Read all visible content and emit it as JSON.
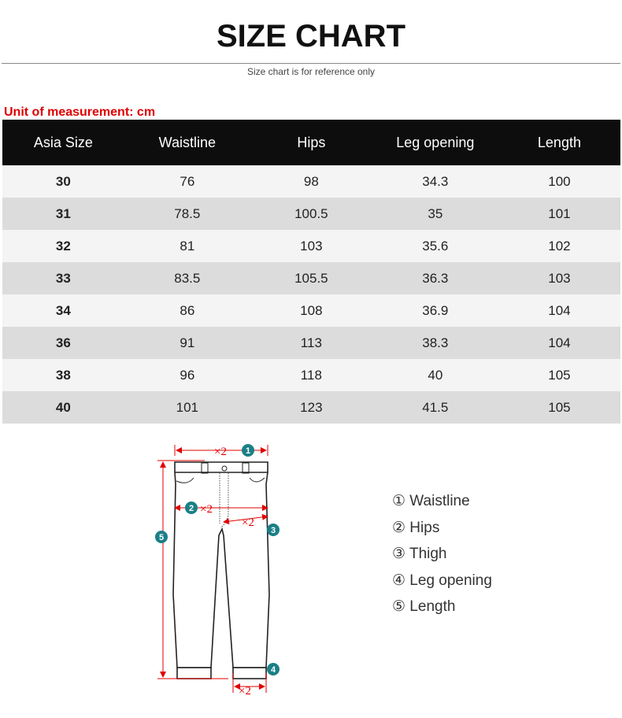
{
  "title": "SIZE CHART",
  "subtitle": "Size chart is for reference only",
  "unit": "Unit of measurement: cm",
  "table": {
    "headers": [
      "Asia Size",
      "Waistline",
      "Hips",
      "Leg opening",
      "Length"
    ],
    "rows": [
      [
        "30",
        "76",
        "98",
        "34.3",
        "100"
      ],
      [
        "31",
        "78.5",
        "100.5",
        "35",
        "101"
      ],
      [
        "32",
        "81",
        "103",
        "35.6",
        "102"
      ],
      [
        "33",
        "83.5",
        "105.5",
        "36.3",
        "103"
      ],
      [
        "34",
        "86",
        "108",
        "36.9",
        "104"
      ],
      [
        "36",
        "91",
        "113",
        "38.3",
        "104"
      ],
      [
        "38",
        "96",
        "118",
        "40",
        "105"
      ],
      [
        "40",
        "101",
        "123",
        "41.5",
        "105"
      ]
    ]
  },
  "diagram": {
    "markers": [
      "1",
      "2",
      "3",
      "4",
      "5"
    ],
    "multiplier": "×2"
  },
  "legend": [
    "① Waistline",
    "② Hips",
    "③ Thigh",
    "④ Leg opening",
    "⑤ Length"
  ],
  "colors": {
    "accent": "#e00000",
    "marker": "#1a7f86",
    "header_bg": "#0d0d0d"
  }
}
